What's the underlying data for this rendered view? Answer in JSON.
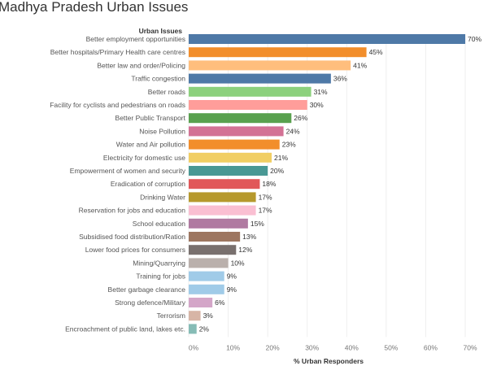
{
  "chart_data": {
    "type": "bar",
    "orientation": "horizontal",
    "title": "Madhya Pradesh Urban Issues",
    "row_header": "Urban Issues",
    "xlabel": "% Urban Responders",
    "ylabel": "",
    "xlim": [
      0,
      70
    ],
    "xticks": [
      "0%",
      "10%",
      "20%",
      "30%",
      "40%",
      "50%",
      "60%",
      "70%"
    ],
    "grid": true,
    "categories": [
      "Better employment opportunities",
      "Better  hospitals/Primary Health care centres",
      "Better law and order/Policing",
      "Traffic congestion",
      "Better roads",
      "Facility for cyclists and pedestrians on roads",
      "Better Public Transport",
      "Noise Pollution",
      "Water and Air pollution",
      "Electricity for domestic use",
      "Empowerment of women and security",
      "Eradication of corruption",
      "Drinking Water",
      "Reservation for jobs and education",
      "School education",
      "Subsidised food distribution/Ration",
      "Lower food prices for consumers",
      "Mining/Quarrying",
      "Training for jobs",
      "Better garbage clearance",
      "Strong defence/Military",
      "Terrorism",
      "Encroachment of public land, lakes etc."
    ],
    "values": [
      70,
      45,
      41,
      36,
      31,
      30,
      26,
      24,
      23,
      21,
      20,
      18,
      17,
      17,
      15,
      13,
      12,
      10,
      9,
      9,
      6,
      3,
      2
    ],
    "value_labels": [
      "70%",
      "45%",
      "41%",
      "36%",
      "31%",
      "30%",
      "26%",
      "24%",
      "23%",
      "21%",
      "20%",
      "18%",
      "17%",
      "17%",
      "15%",
      "13%",
      "12%",
      "10%",
      "9%",
      "9%",
      "6%",
      "3%",
      "2%"
    ],
    "colors": [
      "#4e79a7",
      "#f28e2b",
      "#ffbe7d",
      "#4e79a7",
      "#8cd17d",
      "#ff9d9a",
      "#59a14f",
      "#d37295",
      "#f28e2b",
      "#f1ce63",
      "#499894",
      "#e15759",
      "#b6992d",
      "#fabfd2",
      "#b07aa1",
      "#9d7660",
      "#79706e",
      "#bab0ac",
      "#a0cbe8",
      "#a0cbe8",
      "#d4a6c8",
      "#d7b5a6",
      "#86bcb6"
    ]
  }
}
